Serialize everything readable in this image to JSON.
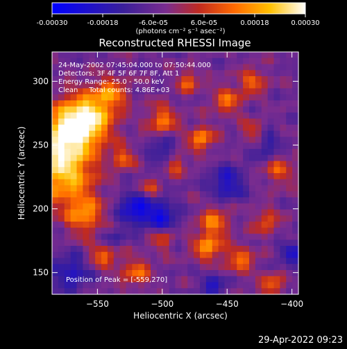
{
  "figure": {
    "title": "Reconstructed RHESSI Image",
    "annotations": [
      "24-May-2002 07:45:04.000 to 07:50:44.000",
      "Detectors: 3F 4F 5F 6F 7F 8F, Att 1",
      "Energy Range: 25.0 - 50.0 keV",
      "Clean     Total counts: 4.86E+03"
    ],
    "peak_label": "Position of Peak = [-559,270]",
    "timestamp": "29-Apr-2022 09:23"
  },
  "colorbar": {
    "ticks": [
      "-0.00030",
      "-0.00018",
      "-6.0e-05",
      "6.0e-05",
      "0.00018",
      "0.00030"
    ],
    "tick_values": [
      -0.0003,
      -0.00018,
      -6e-05,
      6e-05,
      0.00018,
      0.0003
    ],
    "range": [
      -0.0003,
      0.0003
    ],
    "unit_label": "(photons cm⁻² s⁻¹ asec⁻²)",
    "stops": [
      "#0000ff",
      "#3a1f9a",
      "#7a2c8f",
      "#c02a20",
      "#ff6a00",
      "#ffc000",
      "#ffffff"
    ]
  },
  "chart_data": {
    "type": "heatmap",
    "title": "Reconstructed RHESSI Image",
    "xlabel": "Heliocentric X (arcsec)",
    "ylabel": "Heliocentric Y (arcsec)",
    "xlim": [
      -585,
      -395
    ],
    "ylim": [
      133,
      323
    ],
    "xticks": [
      -550,
      -500,
      -450,
      -400
    ],
    "yticks": [
      150,
      200,
      250,
      300
    ],
    "xtick_labels": [
      "−550",
      "−500",
      "−450",
      "−400"
    ],
    "ytick_labels": [
      "150",
      "200",
      "250",
      "300"
    ],
    "peak_position": [
      -559,
      270
    ],
    "value_range": [
      -0.0003,
      0.0003
    ],
    "grid": false
  }
}
